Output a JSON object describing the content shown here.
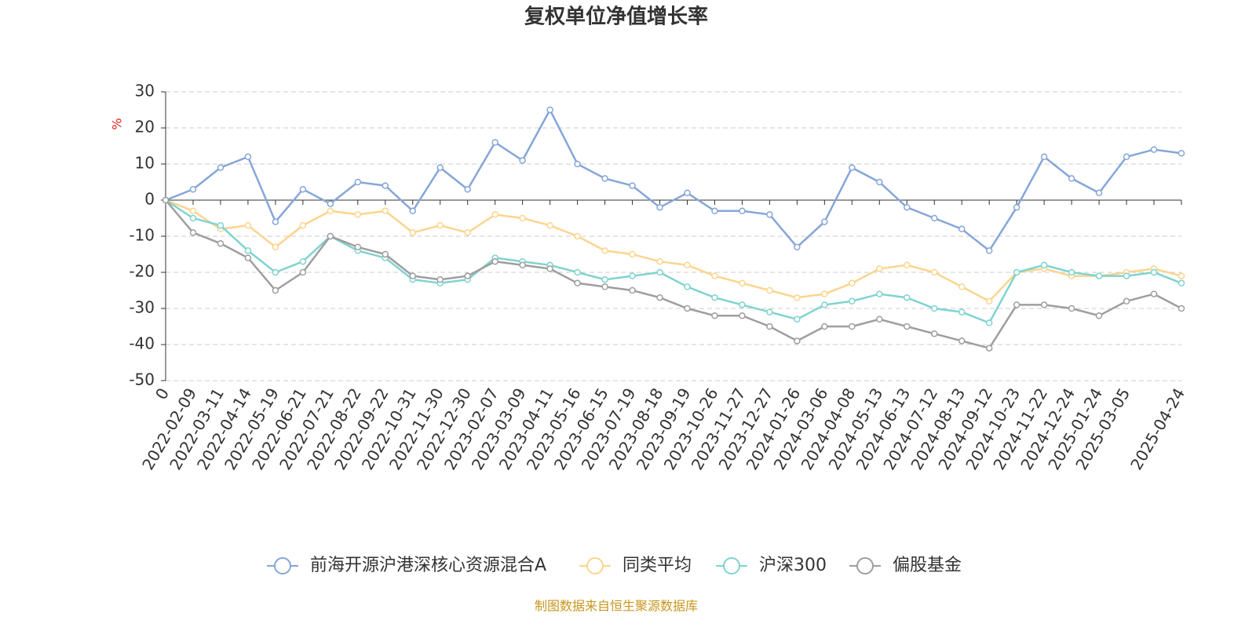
{
  "chart_data": {
    "type": "line",
    "title": "复权单位净值增长率",
    "y_label": "%",
    "source": "制图数据来自恒生聚源数据库",
    "categories": [
      "0",
      "2022-02-09",
      "2022-03-11",
      "2022-04-14",
      "2022-05-19",
      "2022-06-21",
      "2022-07-21",
      "2022-08-22",
      "2022-09-22",
      "2022-10-31",
      "2022-11-30",
      "2022-12-30",
      "2023-02-07",
      "2023-03-09",
      "2023-04-11",
      "2023-05-16",
      "2023-06-15",
      "2023-07-19",
      "2023-08-18",
      "2023-09-19",
      "2023-10-26",
      "2023-11-27",
      "2023-12-27",
      "2024-01-26",
      "2024-03-06",
      "2024-04-08",
      "2024-05-13",
      "2024-06-13",
      "2024-07-12",
      "2024-08-13",
      "2024-09-12",
      "2024-10-23",
      "2024-11-22",
      "2024-12-24",
      "2025-01-24",
      "2025-03-05",
      null,
      "2025-04-24"
    ],
    "series": [
      {
        "name": "前海开源沪港深核心资源混合A",
        "color": "#86a6d8",
        "values": [
          0,
          3,
          9,
          12,
          -6,
          3,
          -1,
          5,
          4,
          -3,
          9,
          3,
          16,
          11,
          25,
          10,
          6,
          4,
          -2,
          2,
          -3,
          -3,
          -4,
          -13,
          -6,
          9,
          5,
          -2,
          -5,
          -8,
          -14,
          -2,
          12,
          6,
          2,
          12,
          14,
          13
        ]
      },
      {
        "name": "同类平均",
        "color": "#fbd58d",
        "values": [
          0,
          -3,
          -8,
          -7,
          -13,
          -7,
          -3,
          -4,
          -3,
          -9,
          -7,
          -9,
          -4,
          -5,
          -7,
          -10,
          -14,
          -15,
          -17,
          -18,
          -21,
          -23,
          -25,
          -27,
          -26,
          -23,
          -19,
          -18,
          -20,
          -24,
          -28,
          -20,
          -19,
          -21,
          -21,
          -20,
          -19,
          -21
        ]
      },
      {
        "name": "沪深300",
        "color": "#7fd3d0",
        "values": [
          0,
          -5,
          -7,
          -14,
          -20,
          -17,
          -10,
          -14,
          -16,
          -22,
          -23,
          -22,
          -16,
          -17,
          -18,
          -20,
          -22,
          -21,
          -20,
          -24,
          -27,
          -29,
          -31,
          -33,
          -29,
          -28,
          -26,
          -27,
          -30,
          -31,
          -34,
          -20,
          -18,
          -20,
          -21,
          -21,
          -20,
          -23
        ]
      },
      {
        "name": "偏股基金",
        "color": "#9e9e9e",
        "values": [
          0,
          -9,
          -12,
          -16,
          -25,
          -20,
          -10,
          -13,
          -15,
          -21,
          -22,
          -21,
          -17,
          -18,
          -19,
          -23,
          -24,
          -25,
          -27,
          -30,
          -32,
          -32,
          -35,
          -39,
          -35,
          -35,
          -33,
          -35,
          -37,
          -39,
          -41,
          -29,
          -29,
          -30,
          -32,
          -28,
          -26,
          -30
        ]
      }
    ],
    "ylim": [
      -50,
      30
    ],
    "yticks": [
      -50,
      -40,
      -30,
      -20,
      -10,
      0,
      10,
      20,
      30
    ],
    "grid": true
  }
}
